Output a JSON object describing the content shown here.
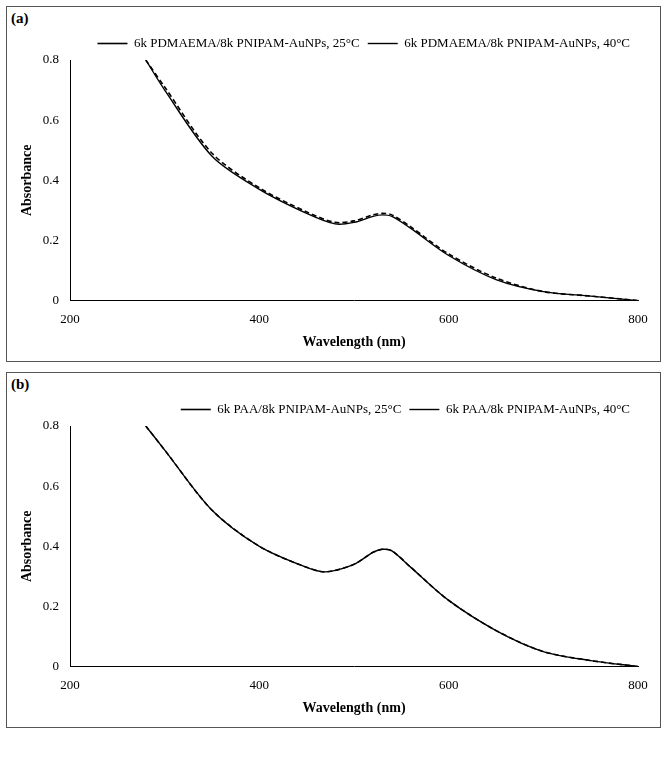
{
  "chart_data": [
    {
      "type": "line",
      "panel": "(a)",
      "x_label": "Wavelength (nm)",
      "y_label": "Absorbance",
      "x": [
        280,
        300,
        350,
        400,
        450,
        480,
        500,
        520,
        530,
        540,
        560,
        600,
        650,
        700,
        750,
        800
      ],
      "series": [
        {
          "name": "6k PDMAEMA/8k PNIPAM-AuNPs, 25°C",
          "color": "#000000",
          "line_style": "dashed",
          "values": [
            0.8,
            0.71,
            0.49,
            0.375,
            0.295,
            0.26,
            0.265,
            0.285,
            0.29,
            0.285,
            0.245,
            0.155,
            0.075,
            0.03,
            0.015,
            0.0
          ]
        },
        {
          "name": "6k PDMAEMA/8k PNIPAM-AuNPs, 40°C",
          "color": "#000000",
          "line_style": "solid",
          "values": [
            0.8,
            0.7,
            0.48,
            0.37,
            0.29,
            0.255,
            0.26,
            0.28,
            0.285,
            0.28,
            0.24,
            0.15,
            0.07,
            0.03,
            0.015,
            0.0
          ]
        }
      ],
      "xlim": [
        200,
        800
      ],
      "xticks": [
        200,
        400,
        600,
        800
      ],
      "ylim": [
        0,
        0.8
      ],
      "yticks": [
        0,
        0.2,
        0.4,
        0.6,
        0.8
      ],
      "grid": false,
      "legend": "top"
    },
    {
      "type": "line",
      "panel": "(b)",
      "x_label": "Wavelength (nm)",
      "y_label": "Absorbance",
      "x": [
        280,
        300,
        350,
        400,
        450,
        470,
        500,
        520,
        530,
        540,
        560,
        600,
        650,
        700,
        750,
        800
      ],
      "series": [
        {
          "name": "6k PAA/8k PNIPAM-AuNPs, 25°C",
          "color": "#000000",
          "line_style": "dashed",
          "values": [
            0.8,
            0.72,
            0.52,
            0.4,
            0.33,
            0.315,
            0.34,
            0.38,
            0.39,
            0.385,
            0.33,
            0.22,
            0.12,
            0.05,
            0.02,
            0.0
          ]
        },
        {
          "name": "6k PAA/8k PNIPAM-AuNPs, 40°C",
          "color": "#000000",
          "line_style": "solid",
          "values": [
            0.8,
            0.72,
            0.52,
            0.4,
            0.33,
            0.315,
            0.34,
            0.38,
            0.39,
            0.385,
            0.33,
            0.22,
            0.12,
            0.05,
            0.02,
            0.0
          ]
        }
      ],
      "xlim": [
        200,
        800
      ],
      "xticks": [
        200,
        400,
        600,
        800
      ],
      "ylim": [
        0,
        0.8
      ],
      "yticks": [
        0,
        0.2,
        0.4,
        0.6,
        0.8
      ],
      "grid": false,
      "legend": "top"
    }
  ]
}
